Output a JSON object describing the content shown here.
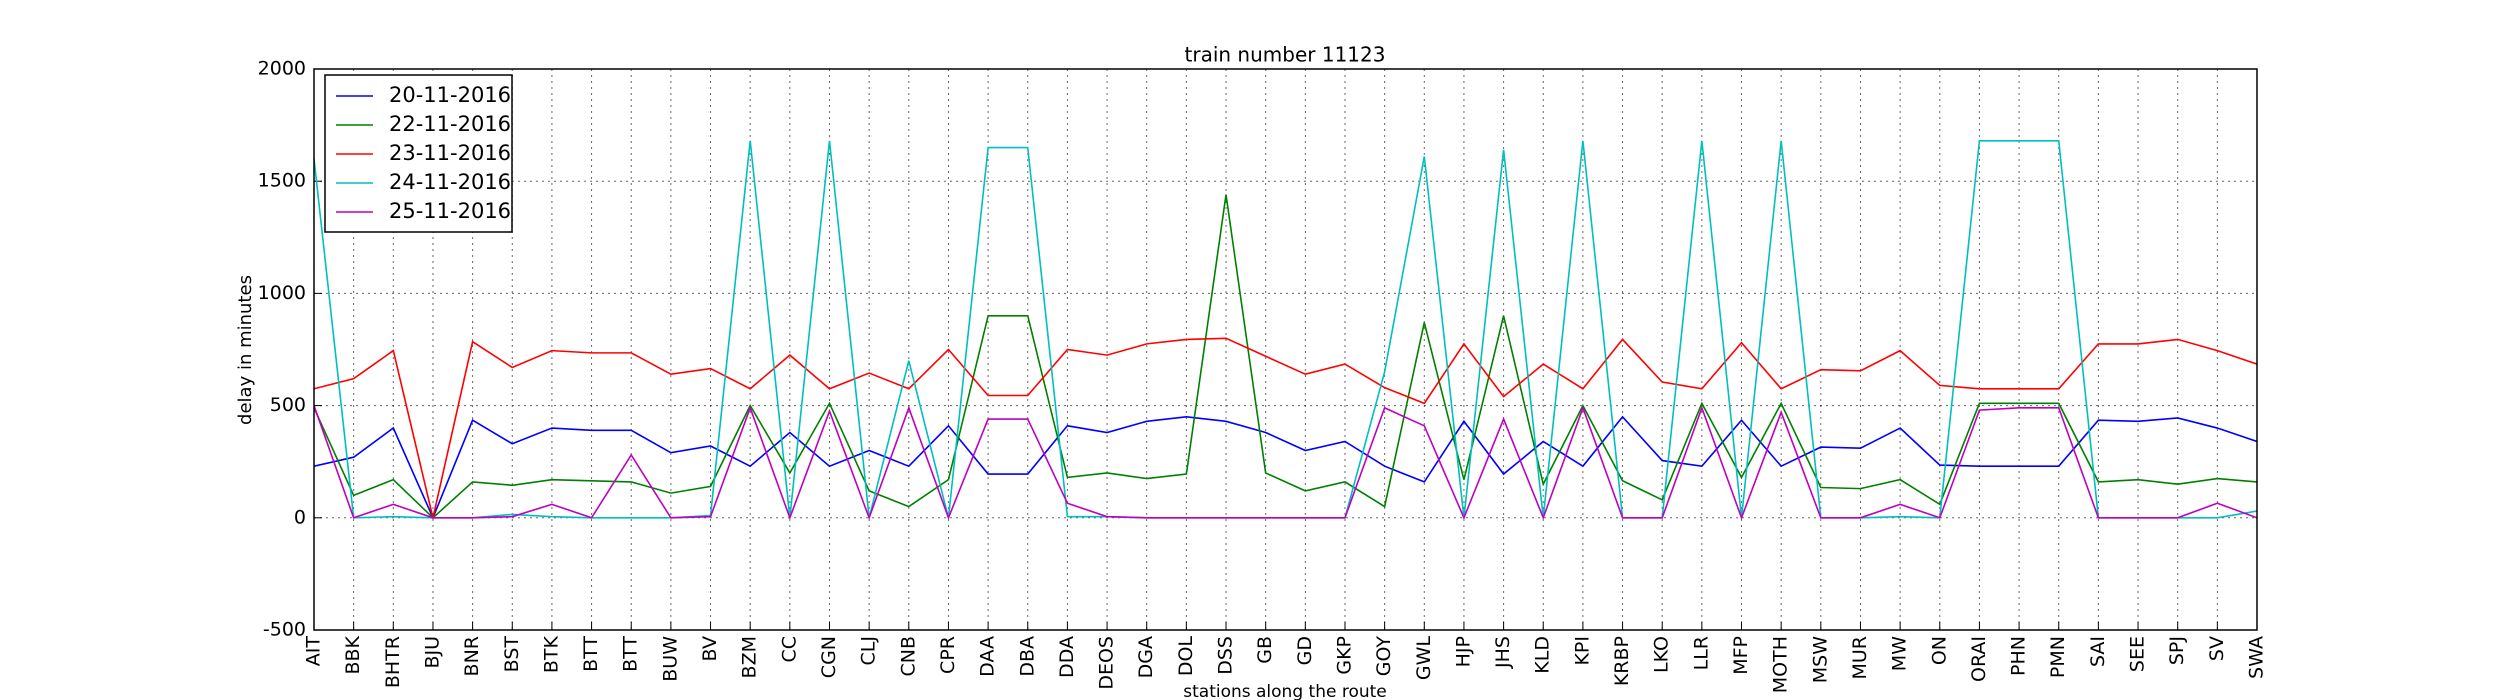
{
  "chart_data": {
    "type": "line",
    "title": "train number 11123",
    "x_label": "stations along the route",
    "y_label": "delay in minutes",
    "categories": [
      "AIT",
      "BBK",
      "BHTR",
      "BJU",
      "BNR",
      "BST",
      "BTK",
      "BTT",
      "BTT",
      "BUW",
      "BV",
      "BZM",
      "CC",
      "CGN",
      "CLJ",
      "CNB",
      "CPR",
      "DAA",
      "DBA",
      "DDA",
      "DEOS",
      "DGA",
      "DOL",
      "DSS",
      "GB",
      "GD",
      "GKP",
      "GOY",
      "GWL",
      "HJP",
      "JHS",
      "KLD",
      "KPI",
      "KRBP",
      "LKO",
      "LLR",
      "MFP",
      "MOTH",
      "MSW",
      "MUR",
      "MW",
      "ON",
      "ORAI",
      "PHN",
      "PMN",
      "SAI",
      "SEE",
      "SPJ",
      "SV",
      "SWA"
    ],
    "series": [
      {
        "name": "20-11-2016",
        "color": "#0000ff",
        "values": [
          230,
          270,
          400,
          0,
          435,
          330,
          400,
          390,
          390,
          290,
          320,
          230,
          380,
          230,
          300,
          230,
          410,
          195,
          195,
          410,
          380,
          430,
          450,
          430,
          380,
          300,
          340,
          230,
          160,
          430,
          195,
          340,
          230,
          450,
          255,
          230,
          435,
          230,
          315,
          310,
          400,
          235,
          230,
          230,
          230,
          435,
          430,
          445,
          400,
          340
        ]
      },
      {
        "name": "22-11-2016",
        "color": "#008000",
        "values": [
          490,
          100,
          170,
          0,
          160,
          145,
          170,
          165,
          160,
          110,
          140,
          500,
          200,
          510,
          120,
          50,
          170,
          900,
          900,
          180,
          200,
          175,
          195,
          1440,
          200,
          120,
          160,
          50,
          870,
          170,
          900,
          150,
          500,
          165,
          80,
          510,
          180,
          510,
          135,
          130,
          170,
          60,
          510,
          510,
          510,
          160,
          170,
          150,
          175,
          160
        ]
      },
      {
        "name": "23-11-2016",
        "color": "#ff0000",
        "values": [
          575,
          620,
          745,
          0,
          785,
          670,
          745,
          735,
          735,
          640,
          665,
          575,
          725,
          575,
          645,
          575,
          750,
          545,
          545,
          750,
          725,
          775,
          795,
          800,
          720,
          640,
          685,
          580,
          510,
          775,
          540,
          685,
          575,
          795,
          605,
          575,
          780,
          575,
          660,
          655,
          745,
          590,
          575,
          575,
          575,
          775,
          775,
          795,
          745,
          685
        ]
      },
      {
        "name": "24-11-2016",
        "color": "#00bfbf",
        "values": [
          1600,
          0,
          5,
          0,
          0,
          15,
          5,
          0,
          0,
          0,
          10,
          1680,
          0,
          1680,
          0,
          700,
          0,
          1650,
          1650,
          5,
          5,
          0,
          0,
          0,
          0,
          0,
          0,
          650,
          1610,
          0,
          1640,
          0,
          1680,
          0,
          0,
          1680,
          0,
          1680,
          0,
          0,
          5,
          0,
          1680,
          1680,
          1680,
          0,
          0,
          0,
          0,
          30
        ]
      },
      {
        "name": "25-11-2016",
        "color": "#bf00bf",
        "values": [
          500,
          0,
          60,
          0,
          0,
          5,
          60,
          0,
          280,
          0,
          5,
          490,
          0,
          475,
          0,
          490,
          0,
          440,
          440,
          65,
          5,
          0,
          0,
          0,
          0,
          0,
          0,
          490,
          410,
          0,
          440,
          0,
          490,
          0,
          0,
          490,
          0,
          470,
          0,
          0,
          60,
          0,
          480,
          490,
          490,
          0,
          0,
          0,
          65,
          0
        ]
      }
    ],
    "ylim": [
      -500,
      2000
    ],
    "yticks": [
      -500,
      0,
      500,
      1000,
      1500,
      2000
    ],
    "grid": true,
    "legend": "upper left"
  }
}
